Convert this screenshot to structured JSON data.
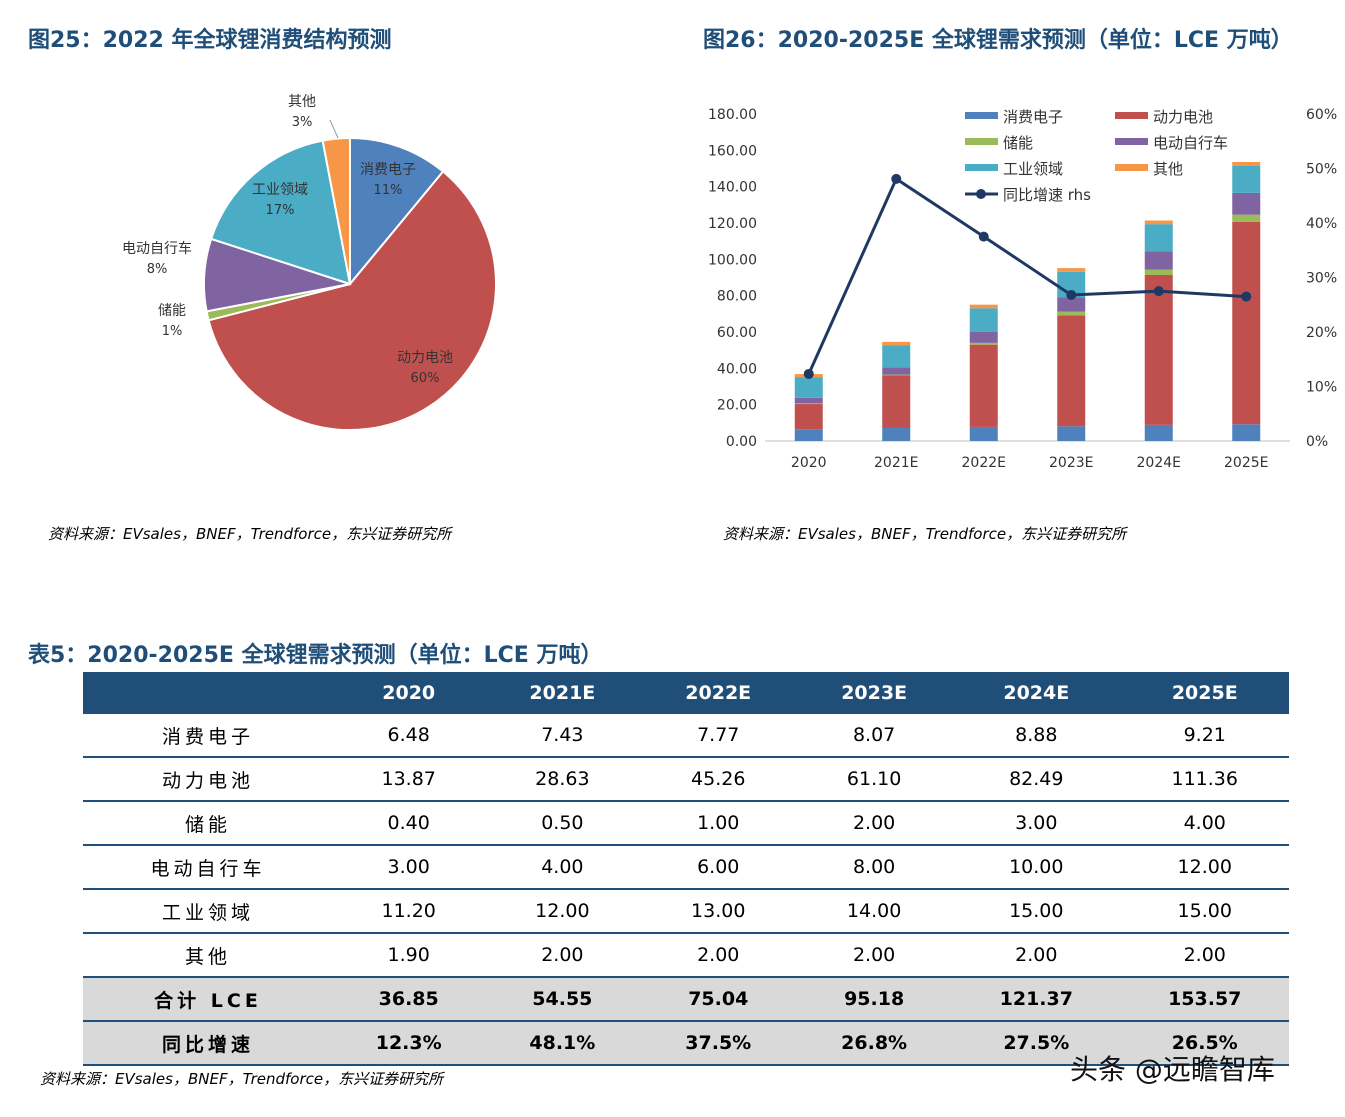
{
  "fig25": {
    "title": "图25：2022 年全球锂消费结构预测",
    "source": "资料来源：EVsales，BNEF，Trendforce，东兴证券研究所"
  },
  "fig26": {
    "title": "图26：2020-2025E 全球锂需求预测（单位：LCE 万吨）",
    "source": "资料来源：EVsales，BNEF，Trendforce，东兴证券研究所"
  },
  "table5": {
    "title": "表5：2020-2025E 全球锂需求预测（单位：LCE 万吨）",
    "headers": [
      "",
      "2020",
      "2021E",
      "2022E",
      "2023E",
      "2024E",
      "2025E"
    ],
    "rows": [
      {
        "label": "消费电子",
        "values": [
          "6.48",
          "7.43",
          "7.77",
          "8.07",
          "8.88",
          "9.21"
        ],
        "shaded": false
      },
      {
        "label": "动力电池",
        "values": [
          "13.87",
          "28.63",
          "45.26",
          "61.10",
          "82.49",
          "111.36"
        ],
        "shaded": false
      },
      {
        "label": "储能",
        "values": [
          "0.40",
          "0.50",
          "1.00",
          "2.00",
          "3.00",
          "4.00"
        ],
        "shaded": false
      },
      {
        "label": "电动自行车",
        "values": [
          "3.00",
          "4.00",
          "6.00",
          "8.00",
          "10.00",
          "12.00"
        ],
        "shaded": false
      },
      {
        "label": "工业领域",
        "values": [
          "11.20",
          "12.00",
          "13.00",
          "14.00",
          "15.00",
          "15.00"
        ],
        "shaded": false
      },
      {
        "label": "其他",
        "values": [
          "1.90",
          "2.00",
          "2.00",
          "2.00",
          "2.00",
          "2.00"
        ],
        "shaded": false
      },
      {
        "label": "合计 LCE",
        "values": [
          "36.85",
          "54.55",
          "75.04",
          "95.18",
          "121.37",
          "153.57"
        ],
        "shaded": true
      },
      {
        "label": "同比增速",
        "values": [
          "12.3%",
          "48.1%",
          "37.5%",
          "26.8%",
          "27.5%",
          "26.5%"
        ],
        "shaded": true
      }
    ],
    "source": "资料来源：EVsales，BNEF，Trendforce，东兴证券研究所"
  },
  "watermark": "头条 @远瞻智库",
  "chart_data": [
    {
      "type": "pie",
      "title": "图25：2022 年全球锂消费结构预测",
      "slices": [
        {
          "label": "消费电子",
          "value": 11,
          "pct_label": "11%",
          "color": "#4f81bd"
        },
        {
          "label": "动力电池",
          "value": 60,
          "pct_label": "60%",
          "color": "#c0504d"
        },
        {
          "label": "储能",
          "value": 1,
          "pct_label": "1%",
          "color": "#9bbb59"
        },
        {
          "label": "电动自行车",
          "value": 8,
          "pct_label": "8%",
          "color": "#8064a2"
        },
        {
          "label": "工业领域",
          "value": 17,
          "pct_label": "17%",
          "color": "#4bacc6"
        },
        {
          "label": "其他",
          "value": 3,
          "pct_label": "3%",
          "color": "#f79646"
        }
      ]
    },
    {
      "type": "bar",
      "stacked": true,
      "title": "图26：2020-2025E 全球锂需求预测（单位：LCE 万吨）",
      "categories": [
        "2020",
        "2021E",
        "2022E",
        "2023E",
        "2024E",
        "2025E"
      ],
      "ylim": [
        0,
        180
      ],
      "yticks": [
        "0.00",
        "20.00",
        "40.00",
        "60.00",
        "80.00",
        "100.00",
        "120.00",
        "140.00",
        "160.00",
        "180.00"
      ],
      "y2lim": [
        0,
        60
      ],
      "y2ticks": [
        "0%",
        "10%",
        "20%",
        "30%",
        "40%",
        "50%",
        "60%"
      ],
      "legend_position": "top",
      "series": [
        {
          "name": "消费电子",
          "color": "#4f81bd",
          "values": [
            6.48,
            7.43,
            7.77,
            8.07,
            8.88,
            9.21
          ]
        },
        {
          "name": "动力电池",
          "color": "#c0504d",
          "values": [
            13.87,
            28.63,
            45.26,
            61.1,
            82.49,
            111.36
          ]
        },
        {
          "name": "储能",
          "color": "#9bbb59",
          "values": [
            0.4,
            0.5,
            1.0,
            2.0,
            3.0,
            4.0
          ]
        },
        {
          "name": "电动自行车",
          "color": "#8064a2",
          "values": [
            3.0,
            4.0,
            6.0,
            8.0,
            10.0,
            12.0
          ]
        },
        {
          "name": "工业领域",
          "color": "#4bacc6",
          "values": [
            11.2,
            12.0,
            13.0,
            14.0,
            15.0,
            15.0
          ]
        },
        {
          "name": "其他",
          "color": "#f79646",
          "values": [
            1.9,
            2.0,
            2.0,
            2.0,
            2.0,
            2.0
          ]
        }
      ],
      "line_series": {
        "name": "同比增速 rhs",
        "color": "#1f3864",
        "axis": "right",
        "values": [
          12.3,
          48.1,
          37.5,
          26.8,
          27.5,
          26.5
        ]
      }
    }
  ]
}
